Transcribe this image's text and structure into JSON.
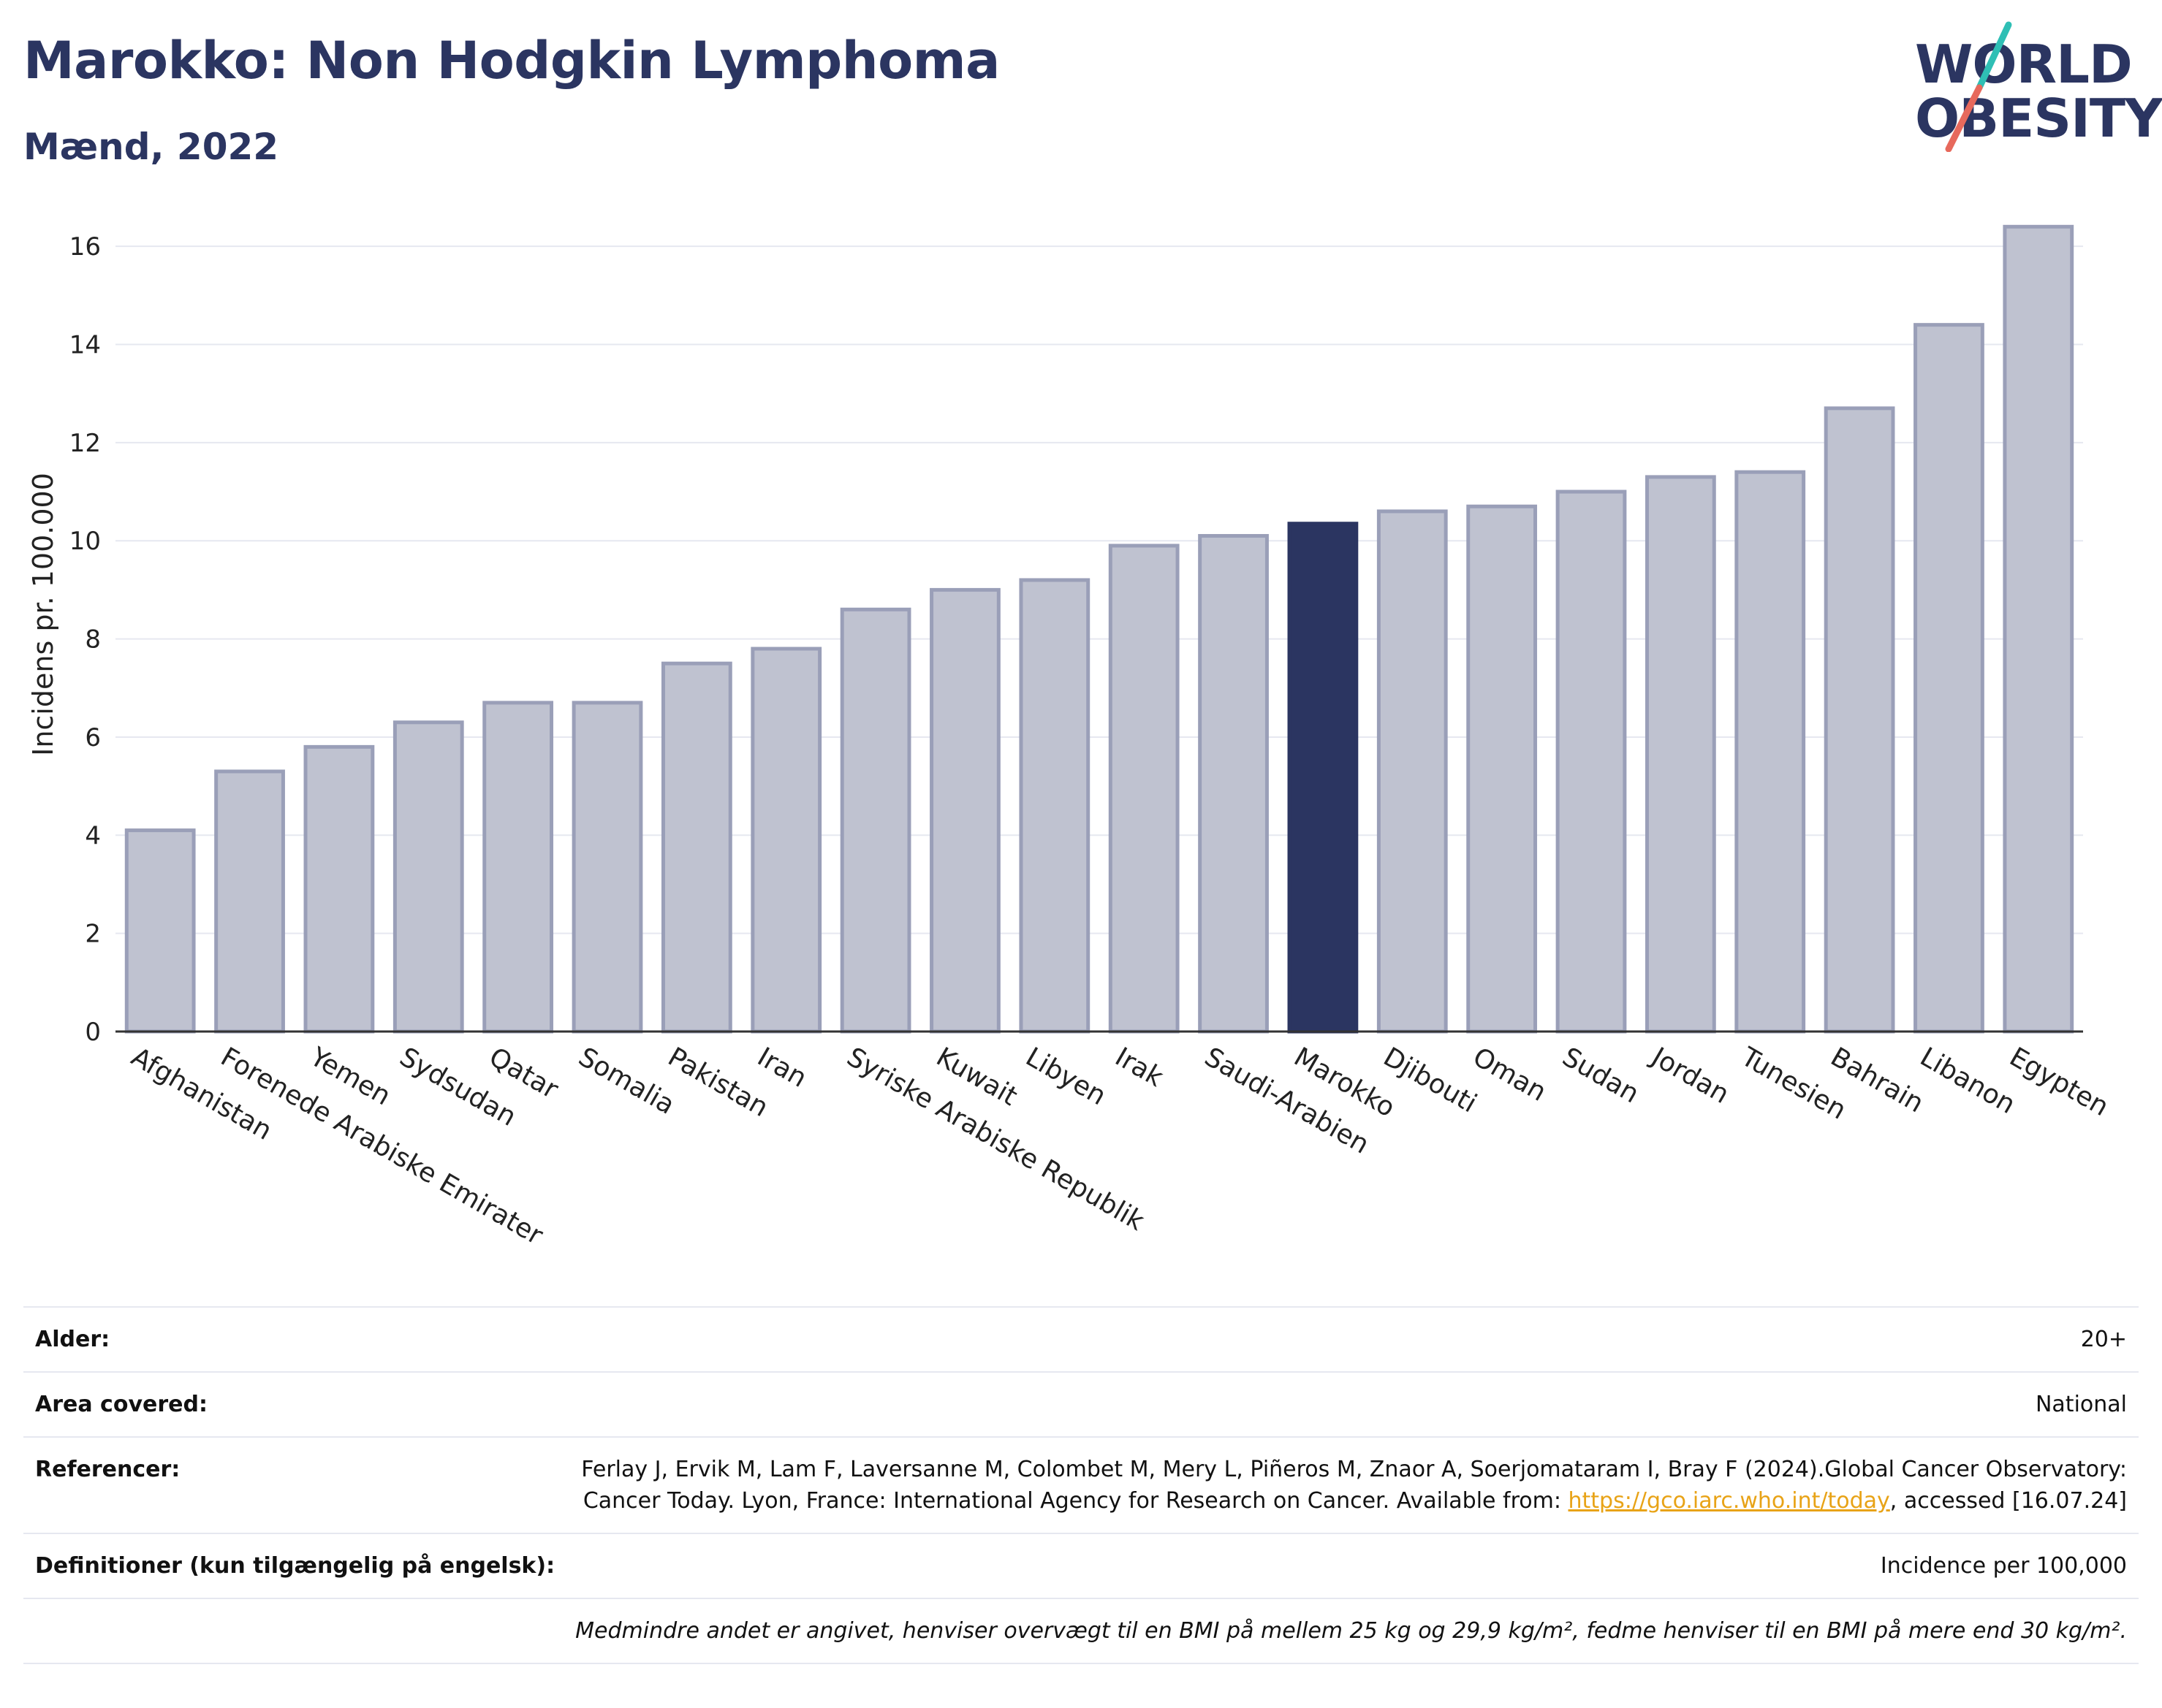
{
  "header": {
    "title": "Marokko: Non Hodgkin Lymphoma",
    "subtitle": "Mænd, 2022"
  },
  "logo": {
    "line1": "WORLD",
    "line2": "OBESITY",
    "slash_colors": [
      "#2fbfb5",
      "#e7695c"
    ]
  },
  "colors": {
    "bar_default": "#bfc2d0",
    "bar_border": "#9a9fb8",
    "bar_highlight": "#2b3561",
    "grid": "#e6e8f0",
    "title": "#2b3561",
    "link": "#e8a317"
  },
  "chart_data": {
    "type": "bar",
    "ylabel": "Incidens pr. 100.000",
    "xlabel": "",
    "ylim": [
      0,
      17
    ],
    "yticks": [
      0,
      2,
      4,
      6,
      8,
      10,
      12,
      14,
      16
    ],
    "highlight": "Marokko",
    "grid": true,
    "categories": [
      "Afghanistan",
      "Forenede Arabiske Emirater",
      "Yemen",
      "Sydsudan",
      "Qatar",
      "Somalia",
      "Pakistan",
      "Iran",
      "Syriske Arabiske Republik",
      "Kuwait",
      "Libyen",
      "Irak",
      "Saudi-Arabien",
      "Marokko",
      "Djibouti",
      "Oman",
      "Sudan",
      "Jordan",
      "Tunesien",
      "Bahrain",
      "Libanon",
      "Egypten"
    ],
    "values": [
      4.1,
      5.3,
      5.8,
      6.3,
      6.7,
      6.7,
      7.5,
      7.8,
      8.6,
      9.0,
      9.2,
      9.9,
      10.1,
      10.35,
      10.6,
      10.7,
      11.0,
      11.3,
      11.4,
      12.7,
      14.4,
      16.4
    ]
  },
  "info": {
    "age_label": "Alder:",
    "age_value": "20+",
    "area_label": "Area covered:",
    "area_value": "National",
    "ref_label": "Referencer:",
    "ref_text": "Ferlay J, Ervik M, Lam F, Laversanne M, Colombet M, Mery L, Piñeros M, Znaor A, Soerjomataram I, Bray F (2024).Global Cancer Observatory: Cancer Today. Lyon, France: International Agency for Research on Cancer. Available from: ",
    "ref_link": "https://gco.iarc.who.int/today",
    "ref_suffix": ", accessed [16.07.24]",
    "def_label": "Definitioner (kun tilgængelig på engelsk):",
    "def_value": "Incidence per 100,000",
    "note": "Medmindre andet er angivet, henviser overvægt til en BMI på mellem 25 kg og 29,9 kg/m², fedme henviser til en BMI på mere end 30 kg/m²."
  }
}
